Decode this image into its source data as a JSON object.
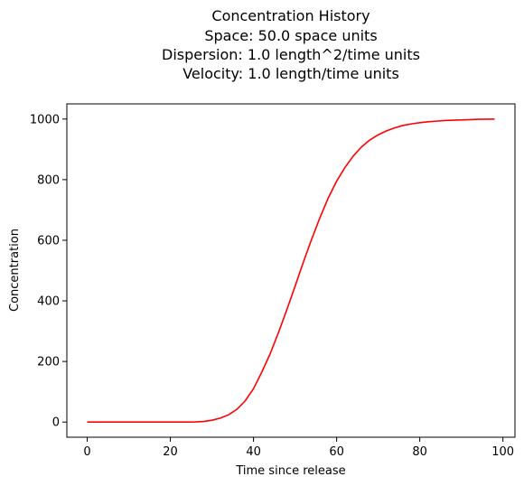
{
  "chart_data": {
    "type": "line",
    "title_lines": [
      "Concentration History",
      "Space: 50.0 space units",
      "Dispersion: 1.0 length^2/time units",
      "Velocity: 1.0 length/time units"
    ],
    "xlabel": "Time since release",
    "ylabel": "Concentration",
    "xlim": [
      -4.9,
      102.9
    ],
    "ylim": [
      -50,
      1050
    ],
    "x_ticks": [
      0,
      20,
      40,
      60,
      80,
      100
    ],
    "y_ticks": [
      0,
      200,
      400,
      600,
      800,
      1000
    ],
    "grid": false,
    "series": [
      {
        "name": "Concentration",
        "color": "#ff0000",
        "x": [
          0,
          2,
          4,
          6,
          8,
          10,
          12,
          14,
          16,
          18,
          20,
          22,
          24,
          26,
          28,
          30,
          32,
          34,
          36,
          38,
          40,
          42,
          44,
          46,
          48,
          50,
          52,
          54,
          56,
          58,
          60,
          62,
          64,
          66,
          68,
          70,
          72,
          74,
          76,
          78,
          80,
          82,
          84,
          86,
          88,
          90,
          92,
          94,
          96,
          98
        ],
        "y": [
          0,
          0,
          0,
          0,
          0,
          0,
          0,
          0,
          0,
          0,
          0,
          0,
          0.1,
          0.5,
          2,
          6,
          13,
          24,
          42,
          70,
          110,
          165,
          225,
          295,
          370,
          448,
          528,
          604,
          675,
          740,
          795,
          840,
          878,
          908,
          931,
          948,
          961,
          971,
          979,
          984,
          988,
          991,
          993,
          995,
          996,
          997,
          998,
          999,
          999.5,
          1000
        ]
      }
    ]
  }
}
